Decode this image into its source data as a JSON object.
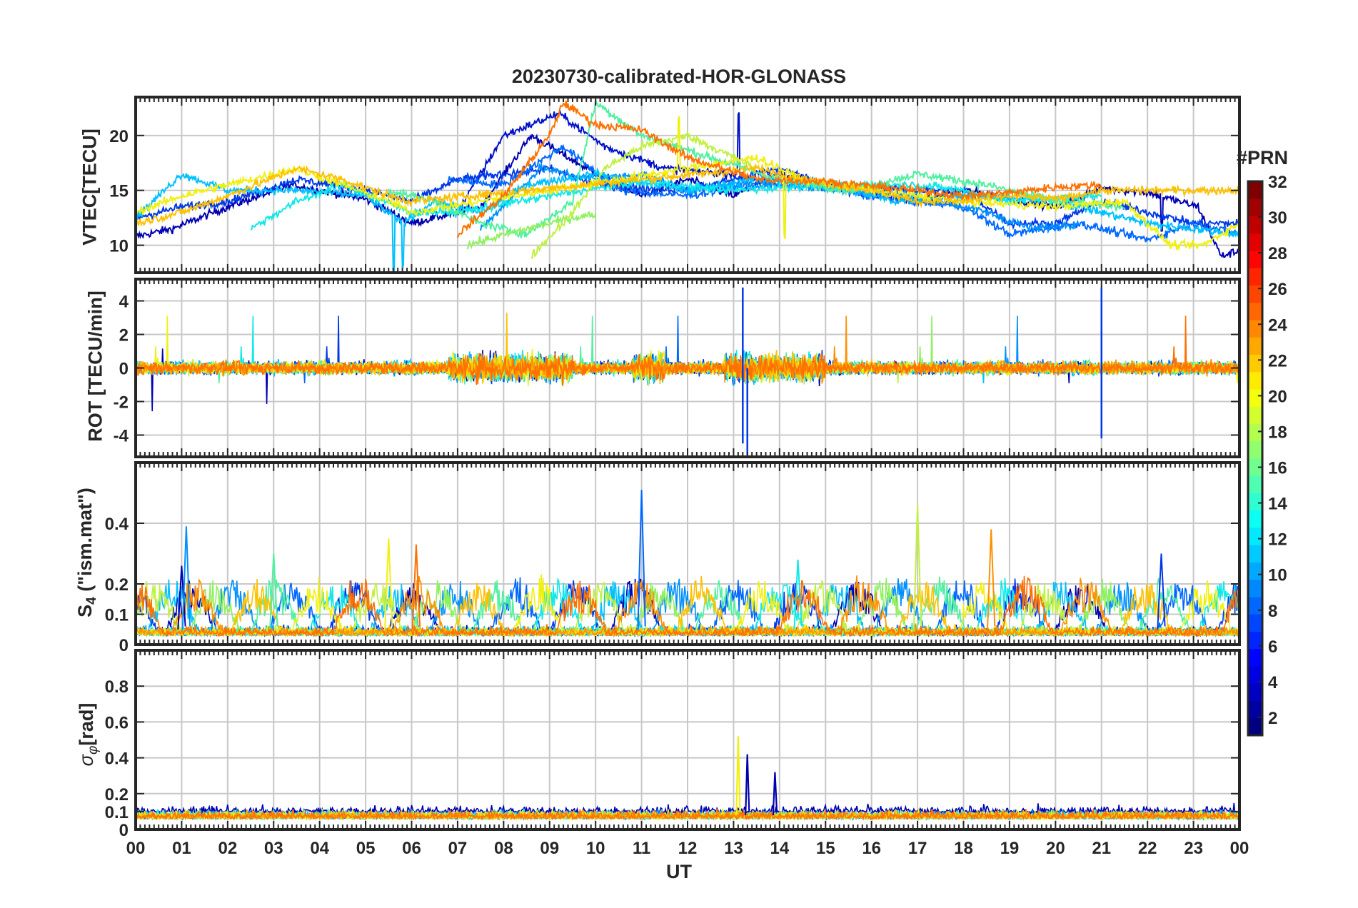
{
  "figure": {
    "title": "20230730-calibrated-HOR-GLONASS",
    "xlabel": "UT",
    "colorbar_label": "#PRN"
  },
  "colors": {
    "axis": "#262626",
    "grid": "#c8c8c8",
    "background": "#ffffff"
  },
  "chart_data": {
    "type": "line",
    "x_range_hours": [
      0,
      24
    ],
    "x_ticks": [
      "00",
      "01",
      "02",
      "03",
      "04",
      "05",
      "06",
      "07",
      "08",
      "09",
      "10",
      "11",
      "12",
      "13",
      "14",
      "15",
      "16",
      "17",
      "18",
      "19",
      "20",
      "21",
      "22",
      "23",
      "00"
    ],
    "colorbar": {
      "label": "#PRN",
      "range": [
        1,
        32
      ],
      "ticks": [
        "2",
        "4",
        "6",
        "8",
        "10",
        "12",
        "14",
        "16",
        "18",
        "20",
        "22",
        "24",
        "26",
        "28",
        "30",
        "32"
      ],
      "colormap": "jet"
    },
    "panels": [
      {
        "id": "vtec",
        "ylabel": "VTEC[TECU]",
        "ylim": [
          7.5,
          23.5
        ],
        "yticks": [
          10,
          15,
          20
        ],
        "ytick_labels": [
          "10",
          "15",
          "20"
        ],
        "kind": "vtec",
        "series": [
          {
            "prn": 2,
            "color": "#0000b0",
            "start": 0.0,
            "end": 24.0,
            "keys": [
              [
                0,
                10.8
              ],
              [
                0.8,
                11.5
              ],
              [
                2,
                13.5
              ],
              [
                3.4,
                15.5
              ],
              [
                5,
                14.2
              ],
              [
                6,
                12
              ],
              [
                7.5,
                13.5
              ],
              [
                8.6,
                20
              ],
              [
                9.8,
                17
              ],
              [
                11,
                14.5
              ],
              [
                12,
                16
              ],
              [
                13,
                14.5
              ],
              [
                14,
                16.5
              ],
              [
                15.5,
                15
              ],
              [
                17,
                14
              ],
              [
                18,
                15
              ],
              [
                20,
                13.5
              ],
              [
                21,
                15.2
              ],
              [
                22,
                14.8
              ],
              [
                23.1,
                13.5
              ],
              [
                23.6,
                9
              ],
              [
                24,
                9.5
              ]
            ],
            "spikes": [
              [
                22.3,
                -3
              ]
            ]
          },
          {
            "prn": 3,
            "color": "#0010c8",
            "start": 7.0,
            "end": 14.0,
            "keys": [
              [
                7,
                13
              ],
              [
                8,
                20
              ],
              [
                9.2,
                22
              ],
              [
                10.2,
                19
              ],
              [
                11.5,
                17
              ],
              [
                13,
                16.5
              ],
              [
                14,
                15.5
              ]
            ],
            "spikes": [
              [
                13.1,
                5.5
              ]
            ]
          },
          {
            "prn": 5,
            "color": "#0038e8",
            "start": 0.0,
            "end": 24.0,
            "keys": [
              [
                0,
                12.5
              ],
              [
                1,
                13.5
              ],
              [
                2,
                14
              ],
              [
                3.5,
                16
              ],
              [
                5,
                15
              ],
              [
                6,
                14
              ],
              [
                7,
                16
              ],
              [
                9,
                17
              ],
              [
                10,
                15.5
              ],
              [
                12,
                15
              ],
              [
                14,
                17
              ],
              [
                15,
                15.5
              ],
              [
                17,
                15
              ],
              [
                18,
                15
              ],
              [
                19,
                12
              ],
              [
                20,
                12
              ],
              [
                21,
                14
              ],
              [
                22,
                13
              ],
              [
                23,
                12
              ],
              [
                24,
                12
              ]
            ],
            "spikes": []
          },
          {
            "prn": 8,
            "color": "#0068ff",
            "start": 6.8,
            "end": 24.0,
            "keys": [
              [
                6.8,
                16
              ],
              [
                8,
                15.5
              ],
              [
                9.3,
                19
              ],
              [
                10.5,
                15
              ],
              [
                12,
                14.5
              ],
              [
                14,
                16
              ],
              [
                16,
                14.5
              ],
              [
                18,
                13.5
              ],
              [
                19,
                11
              ],
              [
                20.5,
                12
              ],
              [
                22,
                10.5
              ],
              [
                23,
                12
              ],
              [
                24,
                11
              ]
            ],
            "spikes": []
          },
          {
            "prn": 10,
            "color": "#0090ff",
            "start": 7.5,
            "end": 20.5,
            "keys": [
              [
                7.5,
                11.5
              ],
              [
                8.8,
                17
              ],
              [
                10,
                16
              ],
              [
                11,
                16.5
              ],
              [
                12,
                15
              ],
              [
                13,
                15.5
              ],
              [
                14,
                15.5
              ],
              [
                15.5,
                15
              ],
              [
                17,
                14.5
              ],
              [
                18.5,
                13
              ],
              [
                19.5,
                11.5
              ],
              [
                20.5,
                12
              ]
            ],
            "spikes": []
          },
          {
            "prn": 12,
            "color": "#00c0ff",
            "start": 0.0,
            "end": 24.0,
            "keys": [
              [
                0,
                12.5
              ],
              [
                1,
                16.5
              ],
              [
                2,
                15
              ],
              [
                3.5,
                15
              ],
              [
                5,
                14.5
              ],
              [
                5.8,
                12
              ],
              [
                6.5,
                14
              ],
              [
                7.5,
                13
              ],
              [
                8.5,
                15.5
              ],
              [
                10,
                16.5
              ],
              [
                12,
                15
              ],
              [
                13.5,
                16
              ],
              [
                15,
                15.5
              ],
              [
                16.5,
                14
              ],
              [
                18,
                14.5
              ],
              [
                20,
                14
              ],
              [
                22,
                12
              ],
              [
                23,
                11.5
              ],
              [
                24,
                11
              ]
            ],
            "spikes": [
              [
                5.6,
                -5
              ],
              [
                5.8,
                -4
              ]
            ]
          },
          {
            "prn": 14,
            "color": "#10e8e8",
            "start": 2.5,
            "end": 21.0,
            "keys": [
              [
                2.5,
                11.5
              ],
              [
                3.5,
                14
              ],
              [
                4.5,
                15.5
              ],
              [
                6,
                13
              ],
              [
                7,
                13
              ],
              [
                9,
                14.5
              ],
              [
                11,
                15.8
              ],
              [
                13,
                15
              ],
              [
                15,
                15.5
              ],
              [
                17,
                15.5
              ],
              [
                18,
                15
              ],
              [
                19,
                14
              ],
              [
                21,
                14.5
              ]
            ],
            "spikes": []
          },
          {
            "prn": 16,
            "color": "#50f0a0",
            "start": 5.5,
            "end": 21.5,
            "keys": [
              [
                5.5,
                15
              ],
              [
                6.5,
                14
              ],
              [
                7.5,
                12
              ],
              [
                8.5,
                11
              ],
              [
                9.5,
                14
              ],
              [
                10,
                23
              ],
              [
                11,
                20
              ],
              [
                12.5,
                18
              ],
              [
                14,
                16
              ],
              [
                15.5,
                15
              ],
              [
                17,
                16.5
              ],
              [
                18.5,
                15.5
              ],
              [
                20,
                14
              ],
              [
                21.5,
                13.5
              ]
            ],
            "spikes": []
          },
          {
            "prn": 17,
            "color": "#90f060",
            "start": 7.2,
            "end": 10.0,
            "keys": [
              [
                7.2,
                10
              ],
              [
                8.5,
                11.5
              ],
              [
                9.5,
                12.5
              ],
              [
                10,
                12.8
              ]
            ],
            "spikes": []
          },
          {
            "prn": 18,
            "color": "#c0f040",
            "start": 8.6,
            "end": 13.5,
            "keys": [
              [
                8.6,
                9
              ],
              [
                9.5,
                13
              ],
              [
                10.2,
                17
              ],
              [
                11,
                19
              ],
              [
                12,
                20
              ],
              [
                13,
                18
              ],
              [
                13.5,
                17
              ]
            ],
            "spikes": []
          },
          {
            "prn": 19,
            "color": "#f0f010",
            "start": 0.0,
            "end": 24.0,
            "keys": [
              [
                0,
                13
              ],
              [
                1,
                14.5
              ],
              [
                2.5,
                16
              ],
              [
                3.5,
                17
              ],
              [
                4.5,
                15.5
              ],
              [
                5.5,
                14
              ],
              [
                6,
                13
              ],
              [
                12,
                17
              ],
              [
                13.5,
                18
              ],
              [
                14.5,
                16
              ],
              [
                16,
                15
              ],
              [
                18,
                14
              ],
              [
                20,
                13.5
              ],
              [
                21.5,
                14
              ],
              [
                22.5,
                10
              ],
              [
                23.2,
                10
              ],
              [
                24,
                12
              ]
            ],
            "spikes": [
              [
                14.1,
                -6
              ],
              [
                11.8,
                4.5
              ]
            ]
          },
          {
            "prn": 21,
            "color": "#ffc000",
            "start": 0.0,
            "end": 24.0,
            "keys": [
              [
                0,
                12
              ],
              [
                1,
                13
              ],
              [
                2,
                14.5
              ],
              [
                3.5,
                17
              ],
              [
                4.5,
                16
              ],
              [
                5.5,
                14.5
              ],
              [
                6,
                14
              ],
              [
                13.5,
                17
              ],
              [
                14.5,
                16
              ],
              [
                16,
                15
              ],
              [
                17,
                14
              ],
              [
                18,
                14
              ],
              [
                19,
                14.5
              ],
              [
                20,
                14.2
              ],
              [
                21,
                15
              ]
            ],
            "spikes": []
          },
          {
            "prn": 24,
            "color": "#ff7000",
            "start": 7.0,
            "end": 21.0,
            "keys": [
              [
                7,
                11
              ],
              [
                8,
                14.5
              ],
              [
                9,
                20
              ],
              [
                9.3,
                23
              ],
              [
                10,
                21
              ],
              [
                11,
                20.5
              ],
              [
                12,
                18
              ],
              [
                13.5,
                16
              ],
              [
                15,
                15.8
              ],
              [
                17,
                15
              ],
              [
                18,
                14.5
              ],
              [
                19,
                14.8
              ],
              [
                20,
                15.3
              ],
              [
                21,
                15.5
              ]
            ],
            "spikes": []
          }
        ]
      },
      {
        "id": "rot",
        "ylabel": "ROT [TECU/min]",
        "ylim": [
          -5.3,
          5.3
        ],
        "yticks": [
          -4,
          -2,
          0,
          2,
          4
        ],
        "ytick_labels": [
          "-4",
          "-2",
          "0",
          "2",
          "4"
        ],
        "kind": "rot",
        "notable_spikes": [
          [
            13.2,
            4.8
          ],
          [
            13.2,
            -4.5
          ],
          [
            13.3,
            -5.2
          ],
          [
            21.0,
            4.8
          ],
          [
            21.0,
            -4.2
          ]
        ]
      },
      {
        "id": "s4",
        "ylabel": "S4 (\"ism.mat\")",
        "ylim": [
          0,
          0.6
        ],
        "yticks": [
          0,
          0.1,
          0.2,
          0.4
        ],
        "ytick_labels": [
          "0",
          "0.1",
          "0.2",
          "0.4"
        ],
        "kind": "s4",
        "notable_peaks": [
          [
            1.0,
            0.26
          ],
          [
            1.1,
            0.39
          ],
          [
            3.0,
            0.3
          ],
          [
            5.5,
            0.35
          ],
          [
            6.1,
            0.33
          ],
          [
            11.0,
            0.51
          ],
          [
            14.4,
            0.28
          ],
          [
            17.0,
            0.46
          ],
          [
            18.6,
            0.38
          ],
          [
            22.3,
            0.3
          ]
        ]
      },
      {
        "id": "sigma_phi",
        "ylabel": "σφ [rad]",
        "ylim": [
          0,
          1.0
        ],
        "yticks": [
          0,
          0.1,
          0.2,
          0.4,
          0.6,
          0.8
        ],
        "ytick_labels": [
          "0",
          "0.1",
          "0.2",
          "0.4",
          "0.6",
          "0.8"
        ],
        "kind": "sigma",
        "notable_peaks": [
          [
            13.1,
            0.52
          ],
          [
            13.3,
            0.42
          ],
          [
            13.9,
            0.32
          ]
        ]
      }
    ]
  }
}
